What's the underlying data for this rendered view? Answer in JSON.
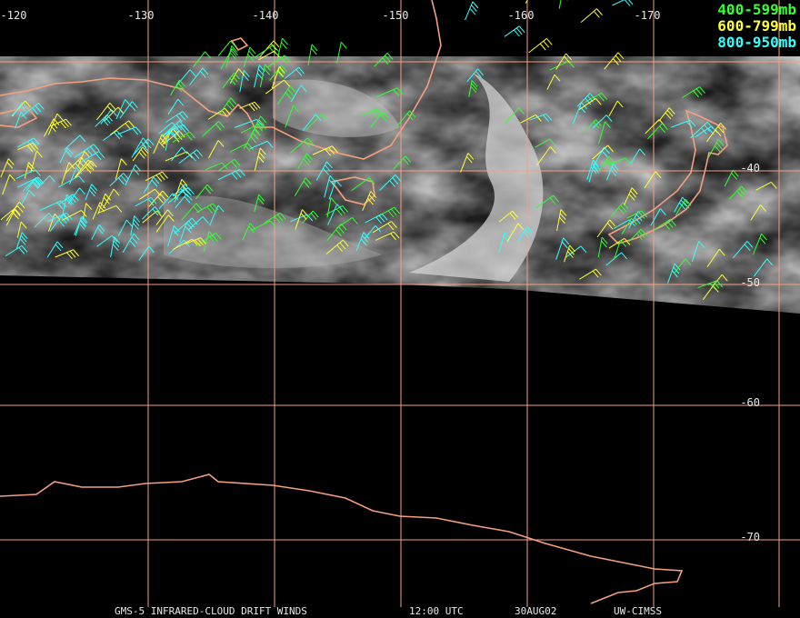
{
  "map": {
    "longitude_labels": [
      "-120",
      "-130",
      "-140",
      "-150",
      "-160",
      "-170"
    ],
    "latitude_labels": [
      "-40",
      "-50",
      "-60",
      "-70"
    ],
    "legend": [
      {
        "label": "400-599mb",
        "color": "#33ff33"
      },
      {
        "label": "600-799mb",
        "color": "#ffff33"
      },
      {
        "label": "800-950mb",
        "color": "#33ffff"
      }
    ],
    "footer": [
      "GMS-5 INFRARED-CLOUD DRIFT WINDS",
      "12:00 UTC",
      "30AUG02",
      "UW-CIMSS"
    ]
  }
}
